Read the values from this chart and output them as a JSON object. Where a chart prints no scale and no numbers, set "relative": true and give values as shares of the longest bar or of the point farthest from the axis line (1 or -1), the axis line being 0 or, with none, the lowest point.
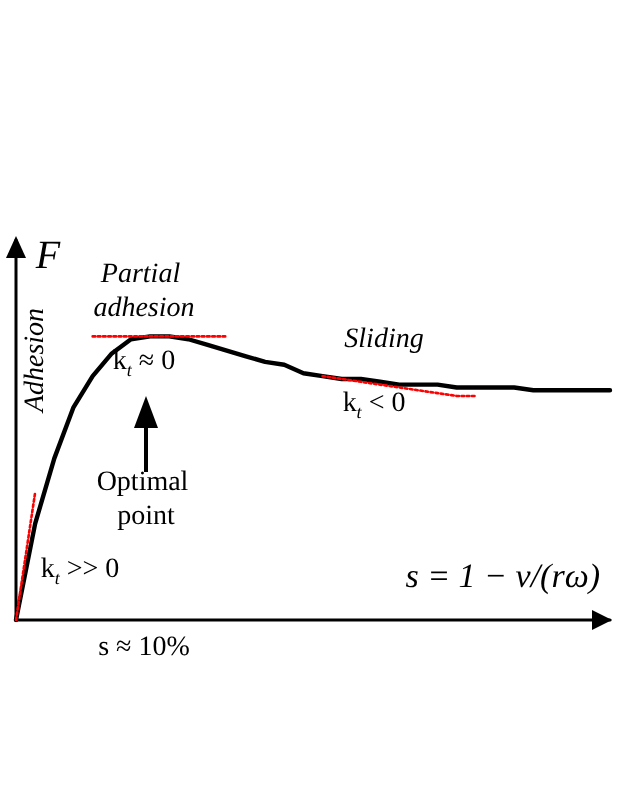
{
  "chart_data": {
    "type": "line",
    "relative": true,
    "xlabel": "s = 1 − v/(rω)",
    "ylabel": "F",
    "grid": false,
    "marker": "none",
    "categories": [
      null,
      null,
      null,
      null,
      null,
      null,
      null,
      null,
      null,
      null,
      null,
      null,
      null,
      null,
      null,
      null,
      null,
      null,
      null,
      null,
      null,
      null,
      null,
      null,
      null,
      null,
      null,
      null,
      null,
      null,
      null,
      null
    ],
    "series": [
      {
        "color": "#000000",
        "line_style": "solid",
        "values": [
          0,
          0.34,
          0.57,
          0.75,
          0.86,
          0.94,
          0.99,
          1,
          1,
          0.99,
          0.97,
          0.95,
          0.93,
          0.91,
          0.9,
          0.87,
          0.86,
          0.85,
          0.85,
          0.84,
          0.83,
          0.83,
          0.83,
          0.82,
          0.82,
          0.82,
          0.82,
          0.81,
          0.81,
          0.81,
          0.81,
          0.81
        ]
      },
      {
        "color": "#ff0000",
        "line_style": "dotted",
        "values": [
          0,
          0.45,
          null,
          null,
          null,
          null,
          null,
          null,
          null,
          null,
          null,
          null,
          null,
          null,
          null,
          null,
          null,
          null,
          null,
          null,
          null,
          null,
          null,
          null,
          null,
          null,
          null,
          null,
          null,
          null,
          null,
          null
        ]
      },
      {
        "color": "#ff0000",
        "line_style": "dotted",
        "values": [
          null,
          null,
          null,
          null,
          1,
          1,
          1,
          1,
          1,
          1,
          1,
          1,
          null,
          null,
          null,
          null,
          null,
          null,
          null,
          null,
          null,
          null,
          null,
          null,
          null,
          null,
          null,
          null,
          null,
          null,
          null,
          null
        ]
      },
      {
        "color": "#ff0000",
        "line_style": "dotted",
        "values": [
          null,
          null,
          null,
          null,
          null,
          null,
          null,
          null,
          null,
          null,
          null,
          null,
          null,
          null,
          null,
          null,
          0.86,
          0.85,
          0.84,
          0.83,
          0.82,
          0.81,
          0.8,
          0.79,
          0.79,
          null,
          null,
          null,
          null,
          null,
          null,
          null
        ]
      }
    ],
    "annotations": [
      "Adhesion",
      "Partial adhesion",
      "k$_{t}$ ≈ 0",
      "Sliding",
      "k$_{t}$ < 0",
      "Optimal point",
      "k$_{t}$ >> 0",
      "s ≈ 10%"
    ]
  }
}
